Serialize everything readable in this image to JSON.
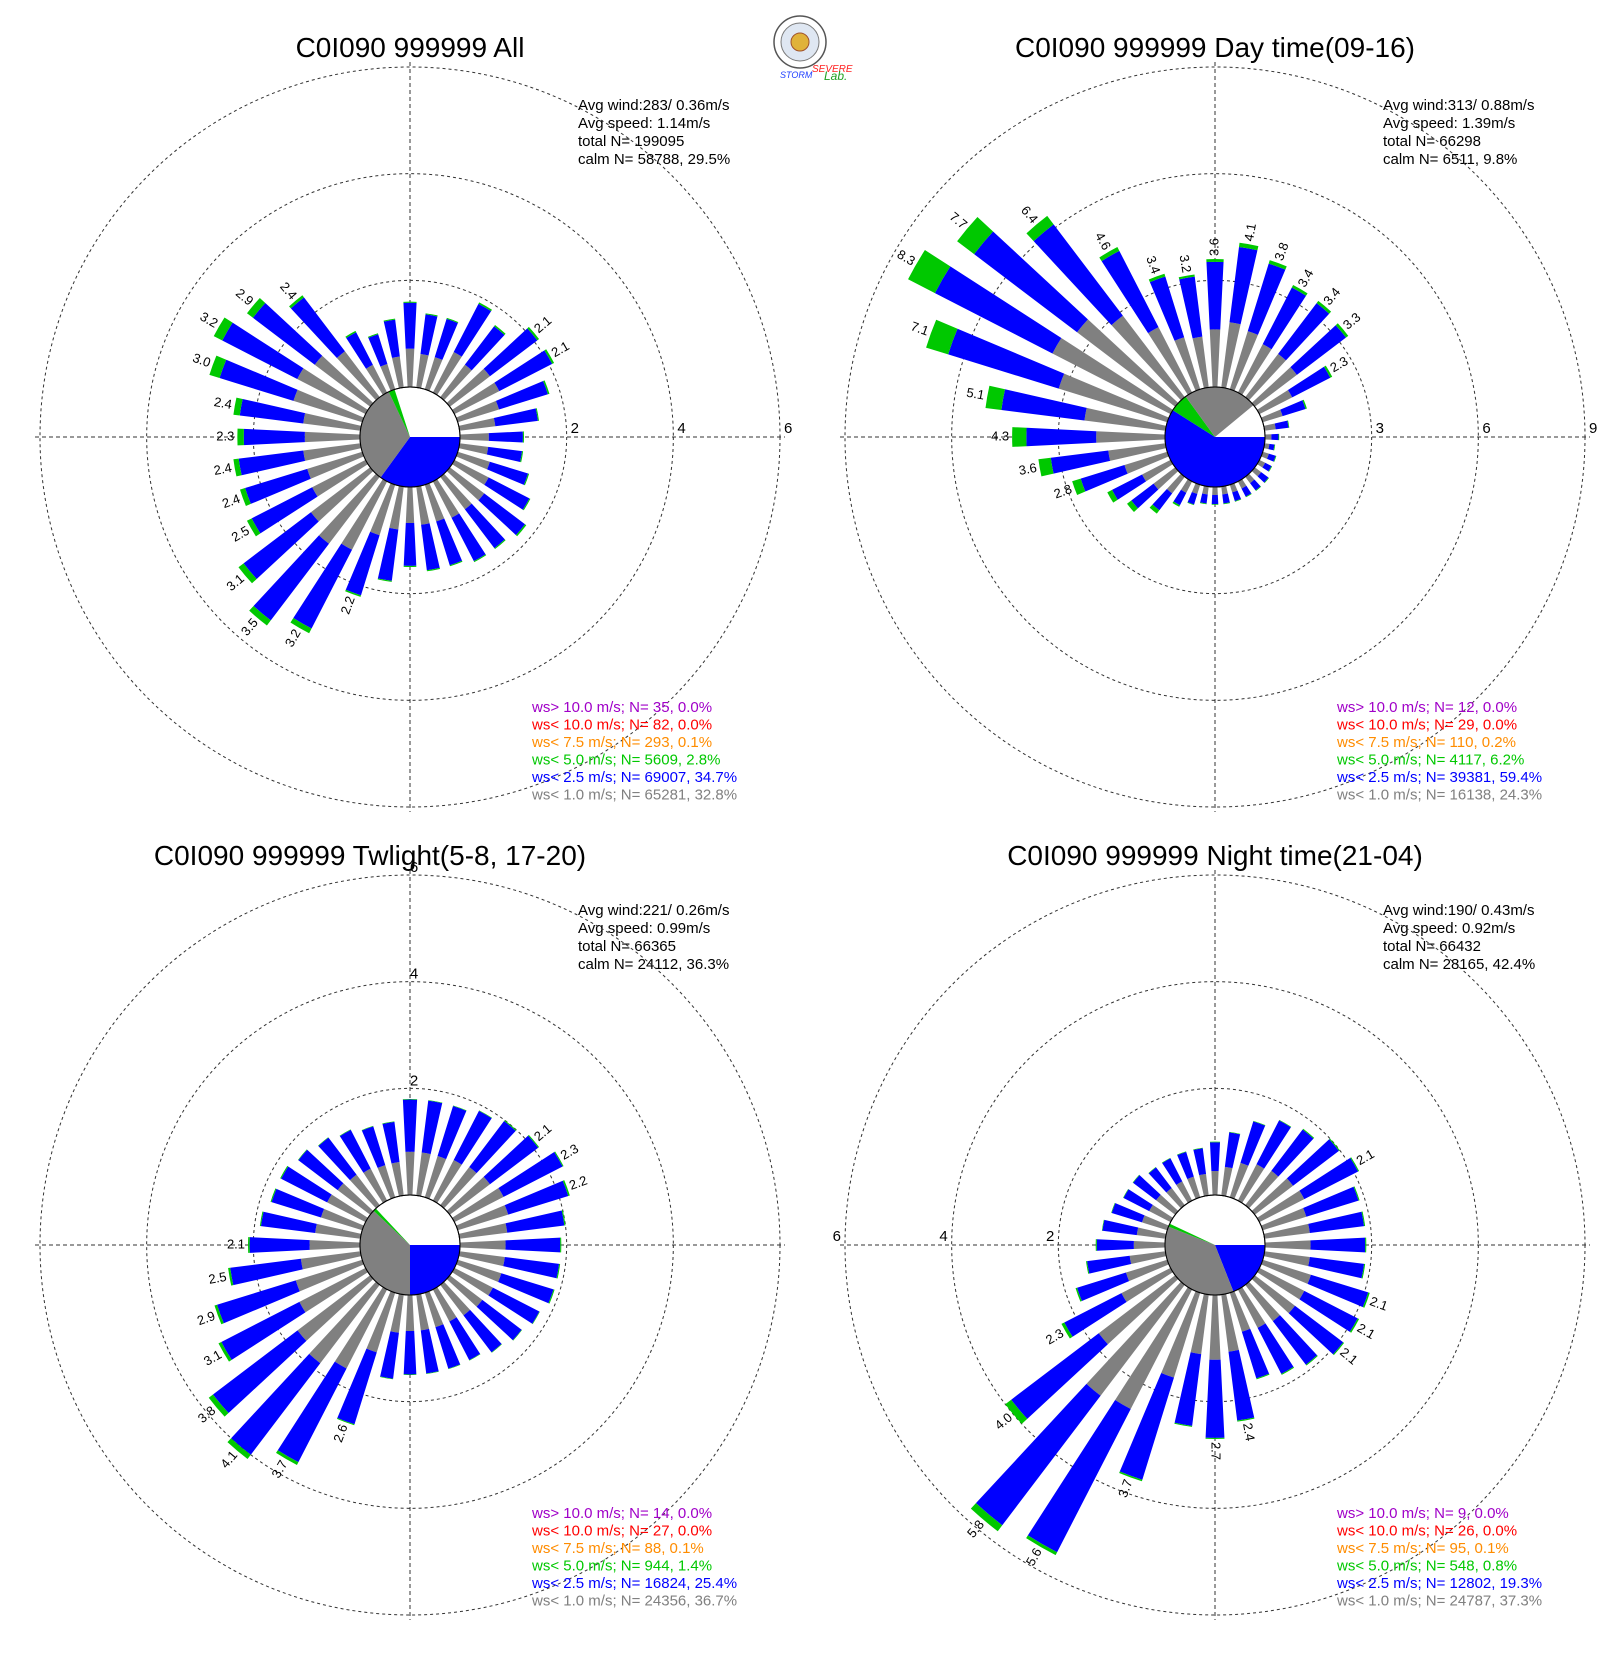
{
  "logo": {
    "text_line1": "SEVERE",
    "text_line2": "STORM",
    "text_line3": "Lab."
  },
  "legend_colors": {
    "ws_gt_10": "#a000c8",
    "ws_lt_10": "#ff0000",
    "ws_lt_7_5": "#ff8c00",
    "ws_lt_5": "#00c800",
    "ws_lt_2_5": "#0000ff",
    "ws_lt_1": "#808080"
  },
  "chart_data": [
    {
      "type": "windrose",
      "title": "C0I090 999999 All",
      "stats": [
        "Avg wind:283/ 0.36m/s",
        "Avg speed: 1.14m/s",
        "total N=      199095",
        "calm N=  58788,  29.5%"
      ],
      "ring_labels": [
        "2",
        "4",
        "6"
      ],
      "rmax": 6,
      "calm_pct": 29.5,
      "calm_segments": [
        {
          "color": "#0000ff",
          "pct": 35
        },
        {
          "color": "#808080",
          "pct": 33
        },
        {
          "color": "#00c800",
          "pct": 2
        }
      ],
      "petal_labels": [
        {
          "dir": 290,
          "text": "3.0"
        },
        {
          "dir": 300,
          "text": "3.2"
        },
        {
          "dir": 310,
          "text": "2.9"
        },
        {
          "dir": 320,
          "text": "2.4"
        },
        {
          "dir": 280,
          "text": "2.4"
        },
        {
          "dir": 270,
          "text": "2.3"
        },
        {
          "dir": 260,
          "text": "2.4"
        },
        {
          "dir": 250,
          "text": "2.4"
        },
        {
          "dir": 240,
          "text": "2.5"
        },
        {
          "dir": 230,
          "text": "3.1"
        },
        {
          "dir": 220,
          "text": "3.5"
        },
        {
          "dir": 210,
          "text": "3.2"
        },
        {
          "dir": 200,
          "text": "2.2"
        },
        {
          "dir": 50,
          "text": "2.1"
        },
        {
          "dir": 60,
          "text": "2.1"
        }
      ],
      "directions": [
        0,
        10,
        20,
        30,
        40,
        50,
        60,
        70,
        80,
        90,
        100,
        110,
        120,
        130,
        140,
        150,
        160,
        170,
        180,
        190,
        200,
        210,
        220,
        230,
        240,
        250,
        260,
        270,
        280,
        290,
        300,
        310,
        320,
        330,
        340,
        350
      ],
      "totals": [
        1.6,
        1.4,
        1.4,
        1.9,
        1.7,
        2.1,
        2.1,
        1.8,
        1.5,
        1.2,
        1.2,
        1.4,
        1.6,
        1.8,
        1.7,
        1.7,
        1.6,
        1.6,
        1.5,
        1.8,
        2.2,
        3.2,
        3.5,
        3.1,
        2.5,
        2.4,
        2.4,
        2.3,
        2.4,
        3.0,
        3.2,
        2.9,
        2.4,
        1.3,
        1.1,
        1.3
      ],
      "green": [
        0.02,
        0.02,
        0.02,
        0.03,
        0.03,
        0.04,
        0.04,
        0.03,
        0.02,
        0.02,
        0.02,
        0.02,
        0.02,
        0.03,
        0.02,
        0.02,
        0.02,
        0.02,
        0.02,
        0.02,
        0.03,
        0.1,
        0.12,
        0.12,
        0.1,
        0.1,
        0.1,
        0.12,
        0.12,
        0.2,
        0.18,
        0.14,
        0.05,
        0.03,
        0.02,
        0.02
      ],
      "legend": [
        {
          "text": "ws> 10.0 m/s; N=   35,  0.0%",
          "key": "ws_gt_10"
        },
        {
          "text": "ws< 10.0 m/s; N=   82,  0.0%",
          "key": "ws_lt_10"
        },
        {
          "text": "ws<  7.5 m/s; N=  293,  0.1%",
          "key": "ws_lt_7_5"
        },
        {
          "text": "ws<  5.0 m/s; N= 5609,  2.8%",
          "key": "ws_lt_5"
        },
        {
          "text": "ws<  2.5 m/s; N= 69007, 34.7%",
          "key": "ws_lt_2_5"
        },
        {
          "text": "ws<  1.0 m/s; N= 65281, 32.8%",
          "key": "ws_lt_1"
        }
      ]
    },
    {
      "type": "windrose",
      "title": "C0I090 999999 Day time(09-16)",
      "stats": [
        "Avg wind:313/ 0.88m/s",
        "Avg speed: 1.39m/s",
        "total N=       66298",
        "calm N=   6511,   9.8%"
      ],
      "ring_labels": [
        "3",
        "6",
        "9"
      ],
      "rmax": 9,
      "calm_pct": 9.8,
      "calm_segments": [
        {
          "color": "#0000ff",
          "pct": 59
        },
        {
          "color": "#00c800",
          "pct": 6
        },
        {
          "color": "#808080",
          "pct": 24
        }
      ],
      "petal_labels": [
        {
          "dir": 280,
          "text": "5.1"
        },
        {
          "dir": 290,
          "text": "7.1"
        },
        {
          "dir": 300,
          "text": "8.3"
        },
        {
          "dir": 310,
          "text": "7.7"
        },
        {
          "dir": 320,
          "text": "6.4"
        },
        {
          "dir": 330,
          "text": "4.6"
        },
        {
          "dir": 340,
          "text": "3.4"
        },
        {
          "dir": 350,
          "text": "3.2"
        },
        {
          "dir": 0,
          "text": "3.6"
        },
        {
          "dir": 10,
          "text": "4.1"
        },
        {
          "dir": 20,
          "text": "3.8"
        },
        {
          "dir": 30,
          "text": "3.4"
        },
        {
          "dir": 40,
          "text": "3.4"
        },
        {
          "dir": 50,
          "text": "3.3"
        },
        {
          "dir": 60,
          "text": "2.3"
        },
        {
          "dir": 270,
          "text": "4.3"
        },
        {
          "dir": 260,
          "text": "3.6"
        },
        {
          "dir": 250,
          "text": "2.8"
        }
      ],
      "directions": [
        0,
        10,
        20,
        30,
        40,
        50,
        60,
        70,
        80,
        90,
        100,
        110,
        120,
        130,
        140,
        150,
        160,
        170,
        180,
        190,
        200,
        210,
        220,
        230,
        240,
        250,
        260,
        270,
        280,
        290,
        300,
        310,
        320,
        330,
        340,
        350
      ],
      "totals": [
        3.6,
        4.1,
        3.8,
        3.4,
        3.4,
        3.3,
        2.3,
        1.3,
        0.7,
        0.4,
        0.3,
        0.4,
        0.4,
        0.5,
        0.5,
        0.5,
        0.5,
        0.5,
        0.5,
        0.5,
        0.6,
        0.8,
        1.3,
        1.7,
        2.0,
        2.8,
        3.6,
        4.3,
        5.1,
        7.1,
        8.3,
        7.7,
        6.4,
        4.6,
        3.4,
        3.2
      ],
      "green": [
        0.08,
        0.12,
        0.1,
        0.08,
        0.08,
        0.08,
        0.06,
        0.04,
        0.02,
        0.02,
        0.02,
        0.02,
        0.02,
        0.02,
        0.02,
        0.02,
        0.02,
        0.02,
        0.02,
        0.02,
        0.02,
        0.05,
        0.12,
        0.15,
        0.15,
        0.25,
        0.35,
        0.4,
        0.45,
        0.65,
        0.85,
        0.6,
        0.3,
        0.12,
        0.08,
        0.06
      ],
      "legend": [
        {
          "text": "ws> 10.0 m/s; N=   12,  0.0%",
          "key": "ws_gt_10"
        },
        {
          "text": "ws< 10.0 m/s; N=   29,  0.0%",
          "key": "ws_lt_10"
        },
        {
          "text": "ws<  7.5 m/s; N=  110,  0.2%",
          "key": "ws_lt_7_5"
        },
        {
          "text": "ws<  5.0 m/s; N= 4117,  6.2%",
          "key": "ws_lt_5"
        },
        {
          "text": "ws<  2.5 m/s; N= 39381, 59.4%",
          "key": "ws_lt_2_5"
        },
        {
          "text": "ws<  1.0 m/s; N= 16138, 24.3%",
          "key": "ws_lt_1"
        }
      ]
    },
    {
      "type": "windrose",
      "title": "C0I090 999999 Twlight(5-8, 17-20)",
      "stats": [
        "Avg wind:221/ 0.26m/s",
        "Avg speed: 0.99m/s",
        "total N=       66365",
        "calm N=  24112,  36.3%"
      ],
      "ring_labels": [
        "2",
        "4",
        "6"
      ],
      "rmax": 6,
      "calm_pct": 36.3,
      "calm_segments": [
        {
          "color": "#0000ff",
          "pct": 25
        },
        {
          "color": "#808080",
          "pct": 37
        },
        {
          "color": "#00c800",
          "pct": 1
        }
      ],
      "petal_labels": [
        {
          "dir": 50,
          "text": "2.1"
        },
        {
          "dir": 60,
          "text": "2.3"
        },
        {
          "dir": 70,
          "text": "2.2"
        },
        {
          "dir": 270,
          "text": "2.1"
        },
        {
          "dir": 260,
          "text": "2.5"
        },
        {
          "dir": 250,
          "text": "2.9"
        },
        {
          "dir": 240,
          "text": "3.1"
        },
        {
          "dir": 230,
          "text": "3.8"
        },
        {
          "dir": 220,
          "text": "4.1"
        },
        {
          "dir": 210,
          "text": "3.7"
        },
        {
          "dir": 200,
          "text": "2.6"
        }
      ],
      "directions": [
        0,
        10,
        20,
        30,
        40,
        50,
        60,
        70,
        80,
        90,
        100,
        110,
        120,
        130,
        140,
        150,
        160,
        170,
        180,
        190,
        200,
        210,
        220,
        230,
        240,
        250,
        260,
        270,
        280,
        290,
        300,
        310,
        320,
        330,
        340,
        350
      ],
      "totals": [
        1.8,
        1.8,
        1.8,
        1.9,
        2.0,
        2.1,
        2.3,
        2.2,
        2.0,
        1.9,
        1.9,
        1.9,
        1.8,
        1.7,
        1.6,
        1.5,
        1.5,
        1.5,
        1.5,
        1.6,
        2.6,
        3.7,
        4.1,
        3.8,
        3.1,
        2.9,
        2.5,
        2.1,
        1.9,
        1.8,
        1.8,
        1.7,
        1.6,
        1.5,
        1.4,
        1.4
      ],
      "green": [
        0.01,
        0.01,
        0.01,
        0.01,
        0.02,
        0.02,
        0.02,
        0.03,
        0.02,
        0.02,
        0.02,
        0.02,
        0.01,
        0.01,
        0.01,
        0.01,
        0.01,
        0.01,
        0.01,
        0.01,
        0.02,
        0.06,
        0.1,
        0.1,
        0.06,
        0.05,
        0.04,
        0.03,
        0.02,
        0.02,
        0.02,
        0.01,
        0.01,
        0.01,
        0.01,
        0.01
      ],
      "legend": [
        {
          "text": "ws> 10.0 m/s; N=   14,  0.0%",
          "key": "ws_gt_10"
        },
        {
          "text": "ws< 10.0 m/s; N=   27,  0.0%",
          "key": "ws_lt_10"
        },
        {
          "text": "ws<  7.5 m/s; N=   88,  0.1%",
          "key": "ws_lt_7_5"
        },
        {
          "text": "ws<  5.0 m/s; N=  944,  1.4%",
          "key": "ws_lt_5"
        },
        {
          "text": "ws<  2.5 m/s; N= 16824, 25.4%",
          "key": "ws_lt_2_5"
        },
        {
          "text": "ws<  1.0 m/s; N= 24356, 36.7%",
          "key": "ws_lt_1"
        }
      ]
    },
    {
      "type": "windrose",
      "title": "C0I090 999999 Night time(21-04)",
      "stats": [
        "Avg wind:190/ 0.43m/s",
        "Avg speed: 0.92m/s",
        "total N=       66432",
        "calm N=  28165,  42.4%"
      ],
      "ring_labels": [
        "2",
        "4",
        "6"
      ],
      "rmax": 6,
      "calm_pct": 42.4,
      "calm_segments": [
        {
          "color": "#0000ff",
          "pct": 19
        },
        {
          "color": "#808080",
          "pct": 37
        },
        {
          "color": "#00c800",
          "pct": 1
        }
      ],
      "petal_labels": [
        {
          "dir": 60,
          "text": "2.1"
        },
        {
          "dir": 110,
          "text": "2.1"
        },
        {
          "dir": 120,
          "text": "2.1"
        },
        {
          "dir": 130,
          "text": "2.1"
        },
        {
          "dir": 170,
          "text": "2.4"
        },
        {
          "dir": 180,
          "text": "2.7"
        },
        {
          "dir": 200,
          "text": "3.7"
        },
        {
          "dir": 210,
          "text": "5.6"
        },
        {
          "dir": 220,
          "text": "5.8"
        },
        {
          "dir": 230,
          "text": "4.0"
        },
        {
          "dir": 240,
          "text": "2.3"
        }
      ],
      "directions": [
        0,
        10,
        20,
        30,
        40,
        50,
        60,
        70,
        80,
        90,
        100,
        110,
        120,
        130,
        140,
        150,
        160,
        170,
        180,
        190,
        200,
        210,
        220,
        230,
        240,
        250,
        260,
        270,
        280,
        290,
        300,
        310,
        320,
        330,
        340,
        350
      ],
      "totals": [
        1.0,
        1.2,
        1.5,
        1.7,
        1.8,
        2.0,
        2.1,
        1.9,
        1.9,
        1.9,
        1.9,
        2.1,
        2.1,
        2.1,
        1.9,
        1.8,
        1.7,
        2.4,
        2.7,
        2.5,
        3.7,
        5.6,
        5.8,
        4.0,
        2.3,
        1.8,
        1.5,
        1.3,
        1.2,
        1.1,
        1.0,
        1.0,
        0.9,
        0.9,
        0.9,
        0.9
      ],
      "green": [
        0.01,
        0.01,
        0.01,
        0.01,
        0.02,
        0.02,
        0.02,
        0.02,
        0.02,
        0.02,
        0.02,
        0.03,
        0.03,
        0.02,
        0.02,
        0.02,
        0.02,
        0.02,
        0.02,
        0.02,
        0.03,
        0.06,
        0.14,
        0.14,
        0.06,
        0.03,
        0.02,
        0.02,
        0.01,
        0.01,
        0.01,
        0.01,
        0.01,
        0.01,
        0.01,
        0.01
      ],
      "legend": [
        {
          "text": "ws> 10.0 m/s; N=    9,  0.0%",
          "key": "ws_gt_10"
        },
        {
          "text": "ws< 10.0 m/s; N=   26,  0.0%",
          "key": "ws_lt_10"
        },
        {
          "text": "ws<  7.5 m/s; N=   95,  0.1%",
          "key": "ws_lt_7_5"
        },
        {
          "text": "ws<  5.0 m/s; N=  548,  0.8%",
          "key": "ws_lt_5"
        },
        {
          "text": "ws<  2.5 m/s; N= 12802, 19.3%",
          "key": "ws_lt_2_5"
        },
        {
          "text": "ws<  1.0 m/s; N= 24787, 37.3%",
          "key": "ws_lt_1"
        }
      ]
    }
  ]
}
